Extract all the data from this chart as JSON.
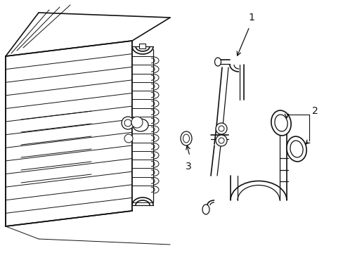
{
  "bg_color": "#ffffff",
  "line_color": "#111111",
  "lw_main": 1.2,
  "lw_thin": 0.7,
  "lw_med": 0.9,
  "fig_width": 4.89,
  "fig_height": 3.6,
  "dpi": 100
}
